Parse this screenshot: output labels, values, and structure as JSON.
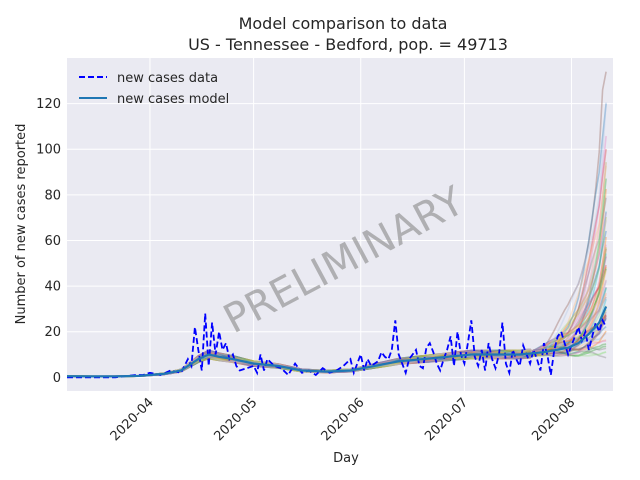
{
  "chart_data": {
    "type": "line",
    "title": "Model comparison to data",
    "subtitle": "US - Tennessee - Bedford, pop. = 49713",
    "xlabel": "Day",
    "ylabel": "Number of new cases reported",
    "watermark": "PRELIMINARY",
    "x_range": [
      "2020-03-08",
      "2020-08-13"
    ],
    "ylim": [
      -6,
      140
    ],
    "x_ticks": [
      "2020-04-01",
      "2020-05-01",
      "2020-06-01",
      "2020-07-01",
      "2020-08-01"
    ],
    "x_tick_labels": [
      "2020-04",
      "2020-05",
      "2020-06",
      "2020-07",
      "2020-08"
    ],
    "y_ticks": [
      0,
      20,
      40,
      60,
      80,
      100,
      120
    ],
    "y_tick_labels": [
      "0",
      "20",
      "40",
      "60",
      "80",
      "100",
      "120"
    ],
    "grid": true,
    "legend_position": "top-left",
    "legend": [
      {
        "label": "new cases data",
        "style": "dashed",
        "color": "#0000ff"
      },
      {
        "label": "new cases model",
        "style": "solid",
        "color": "#1f77b4"
      }
    ],
    "series": [
      {
        "name": "new cases data",
        "color": "#0000ff",
        "x": [
          "2020-03-08",
          "2020-03-15",
          "2020-03-22",
          "2020-03-28",
          "2020-03-30",
          "2020-04-01",
          "2020-04-04",
          "2020-04-07",
          "2020-04-10",
          "2020-04-12",
          "2020-04-13",
          "2020-04-14",
          "2020-04-15",
          "2020-04-16",
          "2020-04-17",
          "2020-04-18",
          "2020-04-19",
          "2020-04-20",
          "2020-04-21",
          "2020-04-22",
          "2020-04-23",
          "2020-04-24",
          "2020-04-25",
          "2020-04-26",
          "2020-04-27",
          "2020-04-29",
          "2020-05-01",
          "2020-05-02",
          "2020-05-03",
          "2020-05-04",
          "2020-05-05",
          "2020-05-07",
          "2020-05-09",
          "2020-05-11",
          "2020-05-13",
          "2020-05-15",
          "2020-05-17",
          "2020-05-19",
          "2020-05-21",
          "2020-05-23",
          "2020-05-25",
          "2020-05-27",
          "2020-05-29",
          "2020-05-30",
          "2020-06-01",
          "2020-06-02",
          "2020-06-03",
          "2020-06-04",
          "2020-06-05",
          "2020-06-06",
          "2020-06-07",
          "2020-06-08",
          "2020-06-09",
          "2020-06-10",
          "2020-06-11",
          "2020-06-12",
          "2020-06-13",
          "2020-06-14",
          "2020-06-15",
          "2020-06-16",
          "2020-06-17",
          "2020-06-18",
          "2020-06-19",
          "2020-06-20",
          "2020-06-21",
          "2020-06-22",
          "2020-06-23",
          "2020-06-24",
          "2020-06-25",
          "2020-06-26",
          "2020-06-27",
          "2020-06-28",
          "2020-06-29",
          "2020-06-30",
          "2020-07-01",
          "2020-07-02",
          "2020-07-03",
          "2020-07-04",
          "2020-07-05",
          "2020-07-06",
          "2020-07-07",
          "2020-07-08",
          "2020-07-09",
          "2020-07-10",
          "2020-07-11",
          "2020-07-12",
          "2020-07-13",
          "2020-07-14",
          "2020-07-15",
          "2020-07-16",
          "2020-07-17",
          "2020-07-18",
          "2020-07-19",
          "2020-07-20",
          "2020-07-21",
          "2020-07-22",
          "2020-07-23",
          "2020-07-24",
          "2020-07-25",
          "2020-07-26",
          "2020-07-27",
          "2020-07-28",
          "2020-07-29",
          "2020-07-30",
          "2020-07-31",
          "2020-08-01",
          "2020-08-02",
          "2020-08-03",
          "2020-08-04",
          "2020-08-05",
          "2020-08-06",
          "2020-08-07",
          "2020-08-08",
          "2020-08-09",
          "2020-08-10",
          "2020-08-11"
        ],
        "values": [
          0,
          0,
          0,
          1,
          1,
          2,
          1,
          3,
          2,
          8,
          5,
          22,
          12,
          3,
          28,
          5,
          24,
          10,
          20,
          12,
          15,
          8,
          10,
          5,
          3,
          4,
          5,
          2,
          10,
          3,
          8,
          5,
          4,
          1,
          6,
          2,
          3,
          1,
          4,
          2,
          3,
          5,
          8,
          2,
          10,
          3,
          8,
          5,
          6,
          7,
          11,
          9,
          8,
          12,
          25,
          10,
          6,
          2,
          8,
          10,
          12,
          5,
          4,
          13,
          15,
          11,
          6,
          3,
          8,
          12,
          18,
          5,
          20,
          10,
          6,
          15,
          25,
          9,
          5,
          12,
          3,
          15,
          8,
          4,
          10,
          24,
          6,
          2,
          12,
          8,
          5,
          14,
          10,
          6,
          12,
          8,
          3,
          15,
          10,
          1,
          12,
          18,
          20,
          15,
          10,
          14,
          18,
          22,
          16,
          20,
          12,
          18,
          24,
          20,
          25,
          22
        ]
      },
      {
        "name": "new cases model",
        "color": "#1f77b4",
        "x": [
          "2020-03-08",
          "2020-03-15",
          "2020-03-22",
          "2020-03-29",
          "2020-04-05",
          "2020-04-10",
          "2020-04-15",
          "2020-04-18",
          "2020-04-21",
          "2020-04-25",
          "2020-05-01",
          "2020-05-08",
          "2020-05-15",
          "2020-05-22",
          "2020-05-29",
          "2020-06-05",
          "2020-06-12",
          "2020-06-19",
          "2020-06-26",
          "2020-07-03",
          "2020-07-10",
          "2020-07-17",
          "2020-07-24",
          "2020-07-31",
          "2020-08-03",
          "2020-08-06",
          "2020-08-09",
          "2020-08-11"
        ],
        "values": [
          0.5,
          0.4,
          0.4,
          0.6,
          1.5,
          3,
          8,
          10,
          9,
          8,
          6,
          5,
          3,
          2.5,
          3,
          5,
          7,
          8,
          9,
          10,
          10,
          10,
          11,
          13,
          15,
          19,
          24,
          31
        ]
      }
    ]
  }
}
